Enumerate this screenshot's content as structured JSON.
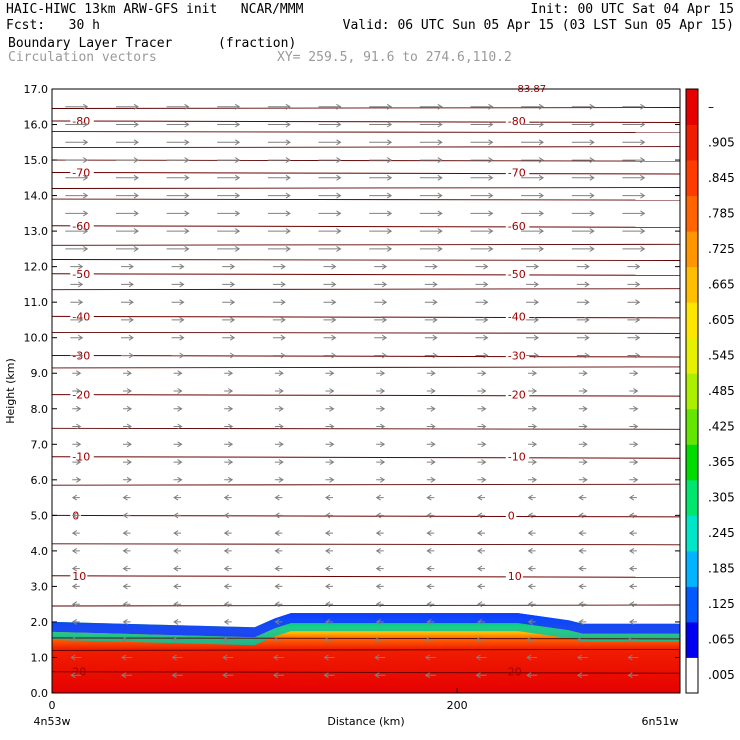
{
  "header": {
    "left_line1": "HAIC-HIWC 13km ARW-GFS init   NCAR/MMM",
    "left_line2": "Fcst:   30 h",
    "right_line1": "Init: 00 UTC Sat 04 Apr 15",
    "right_line2": "Valid: 06 UTC Sun 05 Apr 15 (03 LST Sun 05 Apr 15)",
    "field_name": "Boundary Layer Tracer",
    "field_unit": "(fraction)",
    "vector_name": "Circulation vectors",
    "cross_section": "XY= 259.5, 91.6 to 274.6,110.2"
  },
  "chart_data": {
    "type": "heatmap",
    "title": "Boundary Layer Tracer",
    "units": "fraction",
    "xlabel": "Distance (km)",
    "ylabel": "Height (km)",
    "xlim": [
      0,
      310
    ],
    "ylim": [
      0,
      17
    ],
    "x_ticks": [
      {
        "value": 0,
        "label": "0"
      },
      {
        "value": 200,
        "label": "200"
      }
    ],
    "x_endpoint_labels": {
      "left": "4n53w",
      "right": "6n51w"
    },
    "y_ticks": [
      0.0,
      1.0,
      2.0,
      3.0,
      4.0,
      5.0,
      6.0,
      7.0,
      8.0,
      9.0,
      10.0,
      11.0,
      12.0,
      13.0,
      14.0,
      15.0,
      16.0,
      17.0
    ],
    "y_tick_labels": [
      "0.0",
      "1.0",
      "2.0",
      "3.0",
      "4.0",
      "5.0",
      "6.0",
      "7.0",
      "8.0",
      "9.0",
      "10.0",
      "11.0",
      "12.0",
      "13.0",
      "14.0",
      "15.0",
      "16.0",
      "17.0"
    ],
    "colorbar": {
      "labels": [
        ".005",
        ".065",
        ".125",
        ".185",
        ".245",
        ".305",
        ".365",
        ".425",
        ".485",
        ".545",
        ".605",
        ".665",
        ".725",
        ".785",
        ".845",
        ".905",
        "–"
      ],
      "colors": [
        "#ffffff",
        "#0000f0",
        "#005aff",
        "#00b4ff",
        "#00e6c8",
        "#00e66e",
        "#00dc00",
        "#64e600",
        "#aaf000",
        "#e6f000",
        "#ffe600",
        "#ffbe00",
        "#ff9600",
        "#ff6400",
        "#ff3c00",
        "#f01e00",
        "#e60000"
      ]
    },
    "tracer_top_profile": [
      {
        "x": 0,
        "top": 2.0
      },
      {
        "x": 100,
        "top": 1.85
      },
      {
        "x": 110,
        "top": 2.1
      },
      {
        "x": 118,
        "top": 2.25
      },
      {
        "x": 230,
        "top": 2.25
      },
      {
        "x": 255,
        "top": 2.05
      },
      {
        "x": 262,
        "top": 1.95
      },
      {
        "x": 310,
        "top": 1.95
      }
    ],
    "isotherms_C": [
      {
        "value": -80,
        "label": "-80",
        "height": 16.1
      },
      {
        "value": -70,
        "label": "-70",
        "height": 14.65
      },
      {
        "value": -60,
        "label": "-60",
        "height": 13.15
      },
      {
        "value": -50,
        "label": "-50",
        "height": 11.8
      },
      {
        "value": -40,
        "label": "-40",
        "height": 10.6
      },
      {
        "value": -30,
        "label": "-30",
        "height": 9.5
      },
      {
        "value": -20,
        "label": "-20",
        "height": 8.4
      },
      {
        "value": -10,
        "label": "-10",
        "height": 6.65
      },
      {
        "value": 0,
        "label": "0",
        "height": 5.0
      },
      {
        "value": 10,
        "label": "10",
        "height": 3.3
      },
      {
        "value": 20,
        "label": "20",
        "height": 0.6
      }
    ],
    "top_label": "-83.87",
    "extra_lines_heights": [
      16.45,
      15.8,
      15.35,
      15.0,
      14.2,
      13.9,
      12.6,
      12.2,
      11.35,
      10.15,
      9.15,
      7.45,
      5.85,
      4.2,
      2.45,
      1.55,
      1.2
    ],
    "vectors": {
      "x_spacing_km": 25,
      "upper_direction": "east",
      "lower_direction": "west",
      "reversal_height": 5.6
    }
  }
}
